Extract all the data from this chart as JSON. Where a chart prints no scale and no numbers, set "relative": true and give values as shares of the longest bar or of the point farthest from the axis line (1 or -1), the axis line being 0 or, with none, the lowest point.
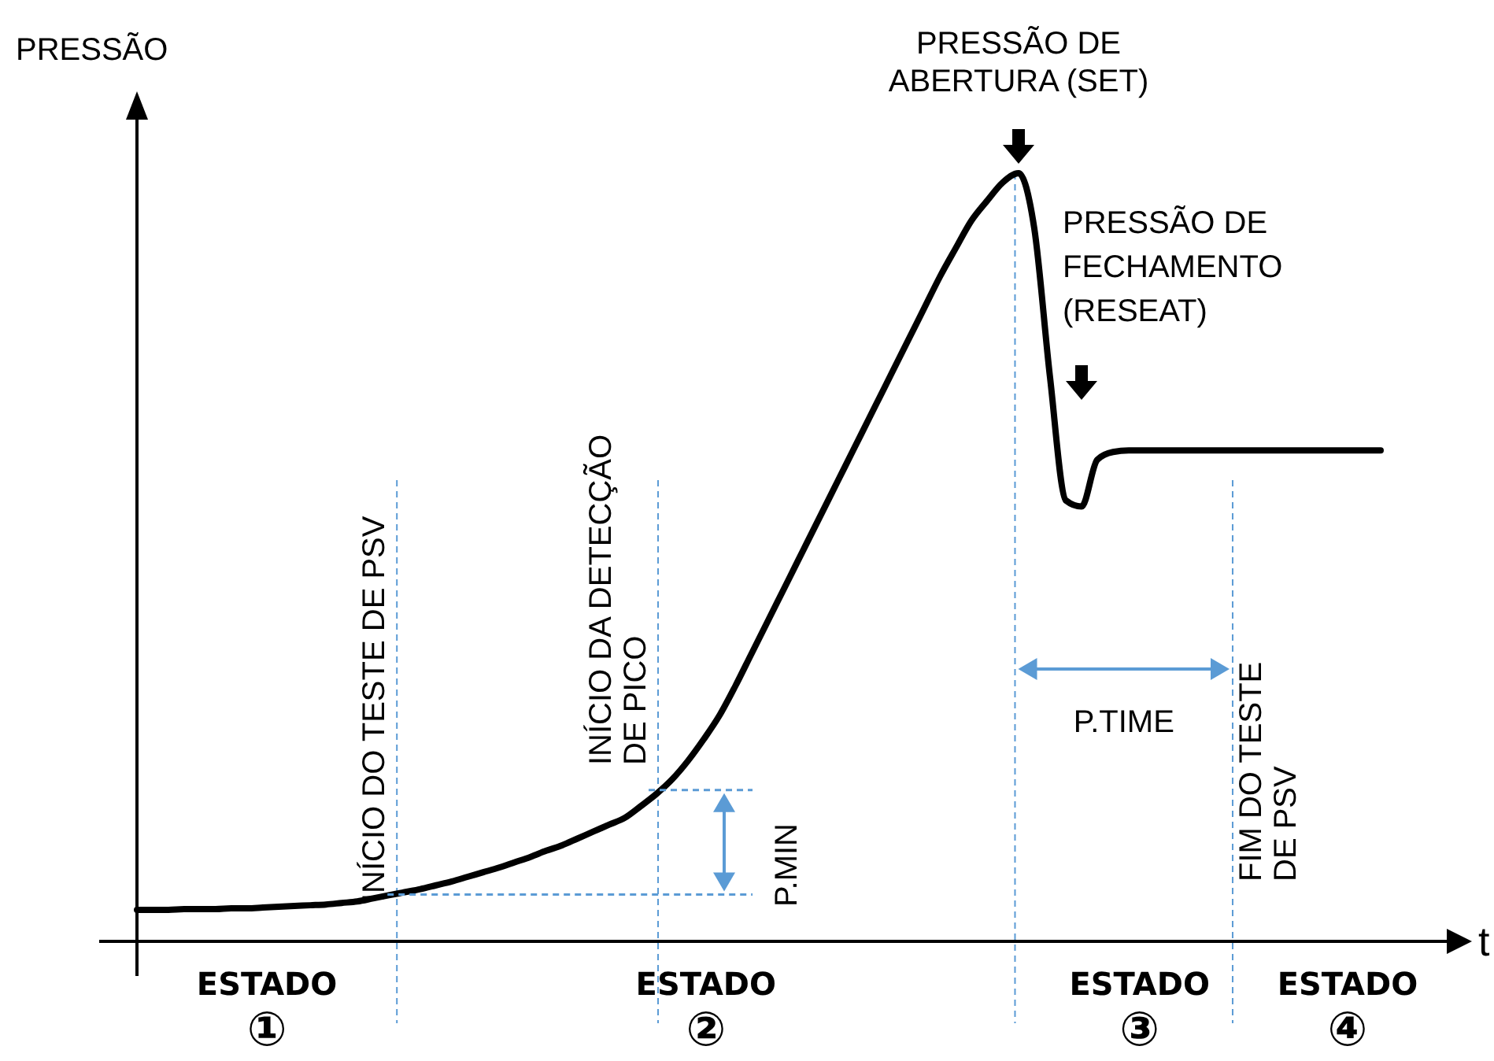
{
  "chart_data": {
    "type": "line",
    "relative": true,
    "xlabel": "t",
    "ylabel": "PRESSÃO",
    "categories": [
      null,
      null,
      null,
      null,
      null,
      null,
      null,
      null,
      null,
      null,
      null,
      null,
      null,
      null,
      null,
      null,
      null,
      null,
      null,
      null,
      null,
      null,
      null,
      null,
      null,
      null,
      null,
      null,
      null,
      null,
      null,
      null,
      null,
      null,
      null,
      null,
      null,
      null,
      null,
      null,
      null,
      null,
      null,
      null,
      null,
      null,
      null,
      null,
      null,
      null,
      null,
      null,
      null,
      null,
      null,
      null,
      null,
      null,
      null,
      null,
      null,
      null,
      null,
      null,
      null,
      null,
      null,
      null,
      null,
      null,
      null,
      null,
      null,
      null,
      null,
      null,
      null,
      null,
      null,
      null
    ],
    "series": [
      {
        "color": "#000000",
        "values": [
          0.041,
          0.041,
          0.041,
          0.042,
          0.042,
          0.042,
          0.043,
          0.043,
          0.044,
          0.045,
          0.046,
          0.047,
          0.048,
          0.05,
          0.052,
          0.056,
          0.06,
          0.064,
          0.068,
          0.073,
          0.078,
          0.084,
          0.09,
          0.096,
          0.103,
          0.11,
          0.118,
          0.125,
          0.134,
          0.143,
          0.152,
          0.161,
          0.176,
          0.192,
          0.211,
          0.235,
          0.263,
          0.294,
          0.332,
          0.373,
          0.414,
          0.455,
          0.496,
          0.537,
          0.578,
          0.619,
          0.66,
          0.701,
          0.742,
          0.783,
          0.824,
          0.865,
          0.902,
          0.938,
          0.964,
          0.988,
          1,
          0.928,
          0.734,
          0.574,
          0.566,
          0.627,
          0.637,
          0.639,
          0.639,
          0.639,
          0.639,
          0.639,
          0.639,
          0.639,
          0.639,
          0.639,
          0.639,
          0.639,
          0.639,
          0.639,
          0.639,
          0.639,
          0.639,
          0.639
        ]
      }
    ],
    "ref_lines": [
      {
        "axis": "y",
        "value": 0.061,
        "label": null,
        "color": "#5b9bd5",
        "line_style": "dashed"
      },
      {
        "axis": "y",
        "value": 0.197,
        "label": null,
        "color": "#5b9bd5",
        "line_style": "dashed"
      }
    ],
    "annotations": [
      "INÍCIO DO TESTE DE PSV",
      "INÍCIO DA DETECÇÃO DE PICO",
      "FIM DO TESTE DE PSV",
      "PRESSÃO DE ABERTURA (SET)",
      "PRESSÃO DE FECHAMENTO (RESEAT)",
      "P.MIN",
      "P.TIME",
      "ESTADO ①",
      "ESTADO ②",
      "ESTADO ③",
      "ESTADO ④"
    ]
  }
}
